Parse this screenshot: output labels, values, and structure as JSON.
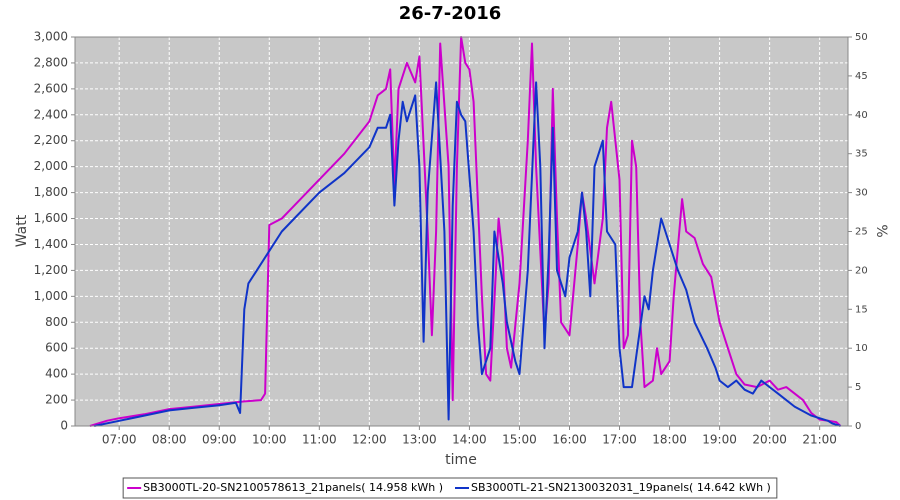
{
  "chart_data": {
    "type": "line",
    "title": "26-7-2016",
    "xlabel": "time",
    "ylabel": "Watt",
    "y2label": "%",
    "xlim": [
      "06:07",
      "21:34"
    ],
    "xticks": [
      "07:00",
      "08:00",
      "09:00",
      "10:00",
      "11:00",
      "12:00",
      "13:00",
      "14:00",
      "15:00",
      "16:00",
      "17:00",
      "18:00",
      "19:00",
      "20:00",
      "21:00"
    ],
    "ylim": [
      0,
      3000
    ],
    "yticks": [
      0,
      200,
      400,
      600,
      800,
      {
        "value": 1000,
        "label": "1,000"
      },
      {
        "value": 1200,
        "label": "1,200"
      },
      {
        "value": 1400,
        "label": "1,400"
      },
      {
        "value": 1600,
        "label": "1,600"
      },
      {
        "value": 1800,
        "label": "1,800"
      },
      {
        "value": 2000,
        "label": "2,000"
      },
      {
        "value": 2200,
        "label": "2,200"
      },
      {
        "value": 2400,
        "label": "2,400"
      },
      {
        "value": 2600,
        "label": "2,600"
      },
      {
        "value": 2800,
        "label": "2,800"
      },
      {
        "value": 3000,
        "label": "3,000"
      }
    ],
    "y2lim": [
      0,
      50
    ],
    "y2ticks": [
      0,
      5,
      10,
      15,
      20,
      25,
      30,
      35,
      40,
      45,
      50
    ],
    "grid": true,
    "legend": "bottom",
    "series": [
      {
        "name": "SB3000TL-20-SN2100578613_21panels( 14.958 kWh )",
        "color": "#cc00cc",
        "x": [
          "06:25",
          "06:45",
          "07:00",
          "07:30",
          "08:00",
          "08:30",
          "09:00",
          "09:30",
          "09:50",
          "09:55",
          "10:00",
          "10:15",
          "10:30",
          "11:00",
          "11:30",
          "12:00",
          "12:10",
          "12:20",
          "12:25",
          "12:30",
          "12:35",
          "12:45",
          "12:55",
          "13:00",
          "13:10",
          "13:15",
          "13:20",
          "13:25",
          "13:35",
          "13:40",
          "13:45",
          "13:50",
          "13:55",
          "14:00",
          "14:05",
          "14:15",
          "14:20",
          "14:25",
          "14:35",
          "14:40",
          "14:45",
          "14:50",
          "15:00",
          "15:10",
          "15:15",
          "15:20",
          "15:30",
          "15:35",
          "15:40",
          "15:45",
          "15:50",
          "16:00",
          "16:10",
          "16:15",
          "16:20",
          "16:30",
          "16:40",
          "16:45",
          "16:50",
          "17:00",
          "17:05",
          "17:10",
          "17:15",
          "17:20",
          "17:25",
          "17:30",
          "17:40",
          "17:45",
          "17:50",
          "18:00",
          "18:05",
          "18:15",
          "18:20",
          "18:30",
          "18:40",
          "18:50",
          "19:00",
          "19:10",
          "19:20",
          "19:30",
          "19:45",
          "20:00",
          "20:10",
          "20:20",
          "20:40",
          "20:50",
          "21:00",
          "21:10",
          "21:20",
          "21:25"
        ],
        "values": [
          0,
          40,
          60,
          90,
          130,
          150,
          170,
          190,
          200,
          250,
          1550,
          1600,
          1700,
          1900,
          2100,
          2350,
          2550,
          2600,
          2750,
          1850,
          2600,
          2800,
          2650,
          2850,
          1500,
          700,
          1500,
          2950,
          2000,
          200,
          2000,
          3000,
          2800,
          2750,
          2500,
          1000,
          400,
          350,
          1600,
          1300,
          600,
          450,
          1100,
          2200,
          2950,
          2000,
          700,
          1100,
          2600,
          1600,
          800,
          700,
          1400,
          1800,
          1600,
          1100,
          1600,
          2300,
          2500,
          1900,
          600,
          700,
          2200,
          2000,
          800,
          300,
          350,
          600,
          400,
          500,
          1000,
          1750,
          1500,
          1450,
          1250,
          1150,
          800,
          600,
          400,
          320,
          300,
          350,
          280,
          300,
          200,
          100,
          50,
          40,
          30,
          0
        ]
      },
      {
        "name": "SB3000TL-21-SN2130032031_19panels( 14.642 kWh )",
        "color": "#1034c8",
        "x": [
          "06:30",
          "07:00",
          "07:30",
          "08:00",
          "08:30",
          "09:00",
          "09:20",
          "09:25",
          "09:30",
          "09:35",
          "09:45",
          "10:00",
          "10:15",
          "10:30",
          "11:00",
          "11:30",
          "12:00",
          "12:10",
          "12:20",
          "12:25",
          "12:30",
          "12:35",
          "12:40",
          "12:45",
          "12:55",
          "13:00",
          "13:05",
          "13:10",
          "13:20",
          "13:30",
          "13:35",
          "13:40",
          "13:45",
          "13:50",
          "13:55",
          "14:05",
          "14:10",
          "14:15",
          "14:25",
          "14:30",
          "14:40",
          "14:45",
          "14:55",
          "15:00",
          "15:10",
          "15:20",
          "15:25",
          "15:30",
          "15:35",
          "15:40",
          "15:45",
          "15:55",
          "16:00",
          "16:10",
          "16:15",
          "16:20",
          "16:25",
          "16:30",
          "16:40",
          "16:45",
          "16:55",
          "17:00",
          "17:05",
          "17:15",
          "17:30",
          "17:35",
          "17:40",
          "17:50",
          "18:00",
          "18:10",
          "18:20",
          "18:30",
          "18:45",
          "18:55",
          "19:00",
          "19:10",
          "19:20",
          "19:30",
          "19:40",
          "19:45",
          "19:50",
          "20:00",
          "20:10",
          "20:30",
          "20:50",
          "21:00",
          "21:10",
          "21:15",
          "21:25"
        ],
        "values": [
          0,
          40,
          80,
          120,
          140,
          160,
          180,
          100,
          900,
          1100,
          1200,
          1350,
          1500,
          1600,
          1800,
          1950,
          2150,
          2300,
          2300,
          2400,
          1700,
          2200,
          2500,
          2350,
          2550,
          2000,
          650,
          1800,
          2650,
          1500,
          50,
          1700,
          2500,
          2400,
          2350,
          1500,
          800,
          400,
          600,
          1500,
          1100,
          800,
          500,
          400,
          1200,
          2650,
          2000,
          600,
          1300,
          2300,
          1200,
          1000,
          1300,
          1500,
          1800,
          1500,
          1000,
          2000,
          2200,
          1500,
          1400,
          600,
          300,
          300,
          1000,
          900,
          1200,
          1600,
          1400,
          1200,
          1050,
          800,
          600,
          450,
          350,
          300,
          350,
          280,
          250,
          300,
          350,
          300,
          250,
          150,
          80,
          60,
          40,
          20,
          0
        ]
      }
    ]
  }
}
